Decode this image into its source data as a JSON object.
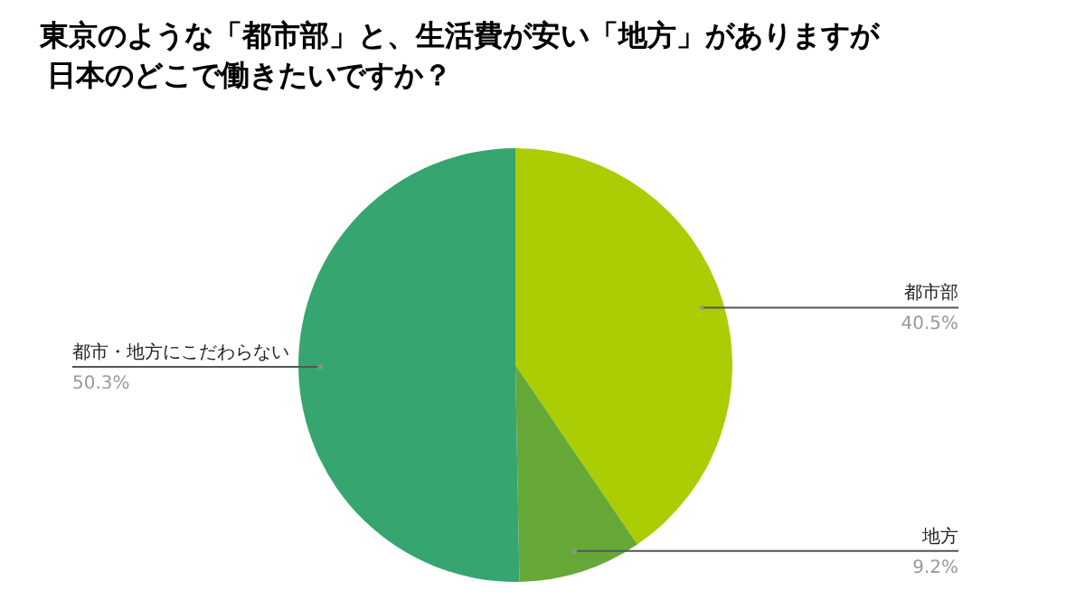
{
  "chart_data": {
    "type": "pie",
    "title": "東京のような「都市部」と、生活費が安い「地方」がありますが日本のどこで働きたいですか？",
    "categories": [
      "都市部",
      "地方",
      "都市・地方にこだわらない"
    ],
    "values": [
      40.5,
      9.2,
      50.3
    ],
    "value_labels": [
      "40.5%",
      "9.2%",
      "50.3%"
    ],
    "colors": [
      "#abcd03",
      "#66a838",
      "#36a56f"
    ]
  }
}
